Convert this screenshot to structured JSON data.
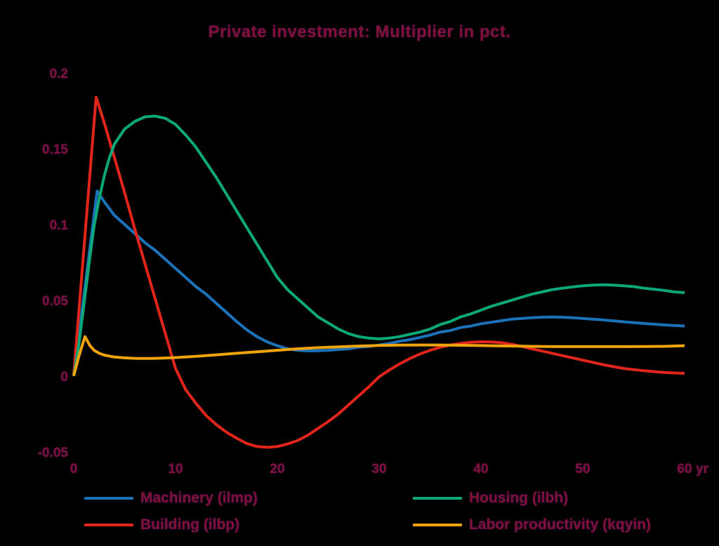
{
  "style": {
    "background": "#000000",
    "text_color": "#7e1230"
  },
  "chart_data": {
    "type": "line",
    "title": "Private investment: Multiplier in pct.",
    "xlabel": "",
    "ylabel": "",
    "x_unit_label": "yr",
    "xlim": [
      0,
      60
    ],
    "ylim": [
      -0.05,
      0.2
    ],
    "xticks": [
      0,
      10,
      20,
      30,
      40,
      50,
      60
    ],
    "yticks": [
      0.2,
      0.15,
      0.1,
      0.05,
      0,
      -0.05
    ],
    "grid": false,
    "legend_position": "bottom",
    "series": [
      {
        "name": "Machinery (ilmp)",
        "color": "#1c72b8",
        "x": [
          0,
          0.4,
          1,
          1.6,
          2.3,
          3,
          4,
          5,
          6,
          7,
          8,
          9,
          10,
          11,
          12,
          13,
          14,
          15,
          16,
          17,
          18,
          19,
          20,
          21,
          22,
          23,
          24,
          25,
          26,
          27,
          28,
          29,
          30,
          31,
          32,
          33,
          34,
          35,
          36,
          37,
          38,
          39,
          40,
          41,
          42,
          43,
          44,
          45,
          46,
          47,
          48,
          49,
          50,
          52,
          54,
          56,
          58,
          60
        ],
        "y": [
          0.002,
          0.022,
          0.054,
          0.086,
          0.123,
          0.116,
          0.107,
          0.101,
          0.095,
          0.089,
          0.084,
          0.078,
          0.072,
          0.066,
          0.06,
          0.055,
          0.049,
          0.043,
          0.037,
          0.0315,
          0.027,
          0.0235,
          0.021,
          0.019,
          0.018,
          0.0176,
          0.0177,
          0.018,
          0.0185,
          0.019,
          0.02,
          0.0205,
          0.0215,
          0.0225,
          0.024,
          0.025,
          0.0265,
          0.028,
          0.03,
          0.031,
          0.033,
          0.034,
          0.0355,
          0.0365,
          0.0375,
          0.0385,
          0.039,
          0.0395,
          0.0398,
          0.04,
          0.0398,
          0.0395,
          0.039,
          0.038,
          0.0368,
          0.0357,
          0.0347,
          0.034
        ]
      },
      {
        "name": "Building (ilbp)",
        "color": "#e1251b",
        "x": [
          0,
          0.4,
          1,
          1.6,
          2.2,
          3,
          4,
          5,
          6,
          7,
          8,
          9,
          10,
          11,
          12,
          13,
          14,
          15,
          16,
          17,
          18,
          19,
          20,
          21,
          22,
          23,
          24,
          25,
          26,
          27,
          28,
          29,
          30,
          31,
          32,
          33,
          34,
          35,
          36,
          37,
          38,
          39,
          40,
          41,
          42,
          43,
          44,
          45,
          46,
          47,
          48,
          49,
          50,
          52,
          54,
          56,
          58,
          60
        ],
        "y": [
          0.002,
          0.035,
          0.085,
          0.135,
          0.185,
          0.168,
          0.145,
          0.122,
          0.098,
          0.075,
          0.052,
          0.029,
          0.006,
          -0.008,
          -0.017,
          -0.025,
          -0.031,
          -0.036,
          -0.04,
          -0.0435,
          -0.0455,
          -0.046,
          -0.0455,
          -0.0438,
          -0.0415,
          -0.038,
          -0.0335,
          -0.029,
          -0.024,
          -0.018,
          -0.012,
          -0.006,
          0.0005,
          0.005,
          0.009,
          0.0125,
          0.0155,
          0.018,
          0.02,
          0.0215,
          0.0225,
          0.0233,
          0.0236,
          0.0235,
          0.023,
          0.022,
          0.0205,
          0.019,
          0.0175,
          0.016,
          0.0145,
          0.013,
          0.0115,
          0.0085,
          0.006,
          0.0045,
          0.0034,
          0.0028
        ]
      },
      {
        "name": "Housing (ilbh)",
        "color": "#0ca87a",
        "x": [
          0,
          0.5,
          1,
          1.5,
          2,
          2.5,
          3,
          3.5,
          4,
          5,
          6,
          7,
          8,
          9,
          10,
          11,
          12,
          13,
          14,
          15,
          16,
          17,
          18,
          19,
          20,
          21,
          22,
          23,
          24,
          25,
          26,
          27,
          28,
          29,
          30,
          31,
          32,
          33,
          34,
          35,
          36,
          37,
          38,
          39,
          40,
          41,
          42,
          43,
          44,
          45,
          46,
          47,
          48,
          49,
          50,
          51,
          52,
          53,
          54,
          55,
          56,
          57,
          58,
          59,
          60
        ],
        "y": [
          0.001,
          0.022,
          0.048,
          0.075,
          0.1,
          0.118,
          0.133,
          0.145,
          0.154,
          0.164,
          0.169,
          0.172,
          0.1725,
          0.171,
          0.167,
          0.16,
          0.152,
          0.142,
          0.132,
          0.121,
          0.11,
          0.099,
          0.088,
          0.077,
          0.066,
          0.058,
          0.052,
          0.046,
          0.04,
          0.036,
          0.032,
          0.029,
          0.027,
          0.026,
          0.0255,
          0.026,
          0.027,
          0.0285,
          0.03,
          0.032,
          0.035,
          0.037,
          0.04,
          0.042,
          0.0445,
          0.047,
          0.049,
          0.051,
          0.053,
          0.055,
          0.0565,
          0.058,
          0.059,
          0.0598,
          0.0605,
          0.061,
          0.0612,
          0.061,
          0.0605,
          0.06,
          0.059,
          0.0583,
          0.0575,
          0.0565,
          0.056
        ]
      },
      {
        "name": "Labor productivity (kqyin)",
        "color": "#efa30e",
        "x": [
          0,
          0.5,
          1.1,
          1.6,
          2,
          2.5,
          3,
          4,
          5,
          6,
          7,
          8,
          9,
          10,
          12,
          14,
          16,
          18,
          20,
          22,
          24,
          26,
          28,
          30,
          32,
          34,
          36,
          38,
          40,
          42,
          44,
          46,
          48,
          50,
          52,
          54,
          56,
          58,
          60
        ],
        "y": [
          0.001,
          0.014,
          0.027,
          0.021,
          0.018,
          0.016,
          0.0148,
          0.0135,
          0.013,
          0.0127,
          0.0126,
          0.0127,
          0.0129,
          0.0132,
          0.014,
          0.015,
          0.016,
          0.017,
          0.018,
          0.019,
          0.0197,
          0.0203,
          0.0208,
          0.0212,
          0.0214,
          0.0215,
          0.0215,
          0.0213,
          0.0211,
          0.0209,
          0.0207,
          0.0205,
          0.0204,
          0.0204,
          0.0204,
          0.0204,
          0.0205,
          0.0206,
          0.021
        ]
      }
    ],
    "legend_rows": [
      [
        "Machinery (ilmp)",
        "Housing (ilbh)"
      ],
      [
        "Building (ilbp)",
        "Labor productivity (kqyin)"
      ]
    ]
  }
}
